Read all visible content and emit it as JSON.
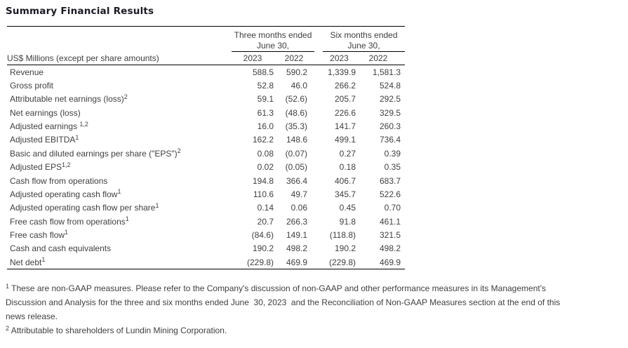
{
  "page": {
    "title": "Summary Financial Results"
  },
  "table": {
    "row_header": "US$ Millions (except per share amounts)",
    "column_groups": [
      {
        "line1": "Three months ended",
        "line2": "June 30,"
      },
      {
        "line1": "Six months ended",
        "line2": "June 30,"
      }
    ],
    "year_columns": [
      "2023",
      "2022",
      "2023",
      "2022"
    ],
    "rows": [
      {
        "label": "Revenue",
        "sup": "",
        "values": [
          "588.5",
          "590.2",
          "1,339.9",
          "1,581.3"
        ]
      },
      {
        "label": "Gross profit",
        "sup": "",
        "values": [
          "52.8",
          "46.0",
          "266.2",
          "524.8"
        ]
      },
      {
        "label": "Attributable net earnings (loss)",
        "sup": "2",
        "values": [
          "59.1",
          "(52.6)",
          "205.7",
          "292.5"
        ]
      },
      {
        "label": "Net earnings (loss)",
        "sup": "",
        "values": [
          "61.3",
          "(48.6)",
          "226.6",
          "329.5"
        ]
      },
      {
        "label": "Adjusted earnings ",
        "sup": "1,2",
        "values": [
          "16.0",
          "(35.3)",
          "141.7",
          "260.3"
        ]
      },
      {
        "label": "Adjusted EBITDA",
        "sup": "1",
        "values": [
          "162.2",
          "148.6",
          "499.1",
          "736.4"
        ]
      },
      {
        "label": "Basic and diluted earnings per share (\"EPS\")",
        "sup": "2",
        "values": [
          "0.08",
          "(0.07)",
          "0.27",
          "0.39"
        ]
      },
      {
        "label": "Adjusted EPS",
        "sup": "1,2",
        "values": [
          "0.02",
          "(0.05)",
          "0.18",
          "0.35"
        ]
      },
      {
        "label": "Cash flow from operations",
        "sup": "",
        "values": [
          "194.8",
          "366.4",
          "406.7",
          "683.7"
        ]
      },
      {
        "label": "Adjusted operating cash flow",
        "sup": "1",
        "values": [
          "110.6",
          "49.7",
          "345.7",
          "522.6"
        ]
      },
      {
        "label": "Adjusted operating cash flow per share",
        "sup": "1",
        "values": [
          "0.14",
          "0.06",
          "0.45",
          "0.70"
        ]
      },
      {
        "label": "Free cash flow from operations",
        "sup": "1",
        "values": [
          "20.7",
          "266.3",
          "91.8",
          "461.1"
        ]
      },
      {
        "label": "Free cash flow",
        "sup": "1",
        "values": [
          "(84.6)",
          "149.1",
          "(118.8)",
          "321.5"
        ]
      },
      {
        "label": "Cash and cash equivalents",
        "sup": "",
        "values": [
          "190.2",
          "498.2",
          "190.2",
          "498.2"
        ]
      },
      {
        "label": "Net debt",
        "sup": "1",
        "values": [
          "(229.8)",
          "469.9",
          "(229.8)",
          "469.9"
        ]
      }
    ]
  },
  "footnotes": [
    {
      "marker": "1",
      "lines": [
        "These are non-GAAP measures. Please refer to the Company's discussion of non-GAAP and other performance measures in its Management's",
        "Discussion and Analysis for the three and six months ended June  30, 2023  and the Reconciliation of Non-GAAP Measures section at the end of this",
        "news release."
      ]
    },
    {
      "marker": "2",
      "lines": [
        "Attributable to shareholders of Lundin Mining Corporation."
      ]
    }
  ],
  "colors": {
    "background": "#ffffff",
    "text": "#3f3f3f",
    "title": "#1a1a24",
    "rule": "#000000"
  }
}
